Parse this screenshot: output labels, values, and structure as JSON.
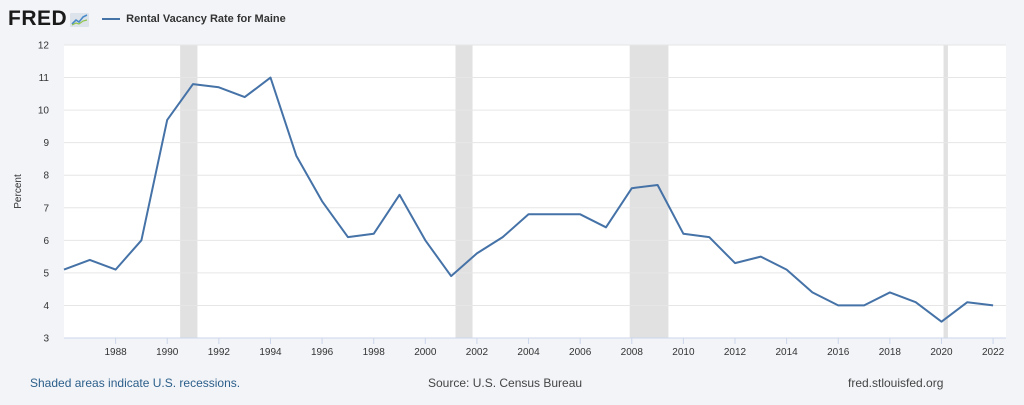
{
  "header": {
    "logo_text": "FRED",
    "logo_icon": "chart-line-icon",
    "legend_label": "Rental Vacancy Rate for Maine"
  },
  "footer": {
    "recession_note": "Shaded areas indicate U.S. recessions.",
    "source": "Source: U.S. Census Bureau",
    "site": "fred.stlouisfed.org"
  },
  "colors": {
    "series": "#4572a7",
    "recession": "#e1e1e1",
    "grid": "#e6e6e6",
    "plot_bg": "#ffffff"
  },
  "chart_data": {
    "type": "line",
    "title": "",
    "xlabel": "",
    "ylabel": "Percent",
    "xlim": [
      1986,
      2022.5
    ],
    "ylim": [
      3,
      12
    ],
    "y_ticks": [
      3,
      4,
      5,
      6,
      7,
      8,
      9,
      10,
      11,
      12
    ],
    "x_ticks": [
      1988,
      1990,
      1992,
      1994,
      1996,
      1998,
      2000,
      2002,
      2004,
      2006,
      2008,
      2010,
      2012,
      2014,
      2016,
      2018,
      2020,
      2022
    ],
    "grid": true,
    "legend_position": "top-left",
    "recessions": [
      {
        "start": 1990.5,
        "end": 1991.17
      },
      {
        "start": 2001.17,
        "end": 2001.83
      },
      {
        "start": 2007.92,
        "end": 2009.42
      },
      {
        "start": 2020.08,
        "end": 2020.25
      }
    ],
    "series": [
      {
        "name": "Rental Vacancy Rate for Maine",
        "x": [
          1986,
          1987,
          1988,
          1989,
          1990,
          1991,
          1992,
          1993,
          1994,
          1995,
          1996,
          1997,
          1998,
          1999,
          2000,
          2001,
          2002,
          2003,
          2004,
          2005,
          2006,
          2007,
          2008,
          2009,
          2010,
          2011,
          2012,
          2013,
          2014,
          2015,
          2016,
          2017,
          2018,
          2019,
          2020,
          2021,
          2022
        ],
        "values": [
          5.1,
          5.4,
          5.1,
          6.0,
          9.7,
          10.8,
          10.7,
          10.4,
          11.0,
          8.6,
          7.2,
          6.1,
          6.2,
          7.4,
          6.0,
          4.9,
          5.6,
          6.1,
          6.8,
          6.8,
          6.8,
          6.4,
          7.6,
          7.7,
          6.2,
          6.1,
          5.3,
          5.5,
          5.1,
          4.4,
          4.0,
          4.0,
          4.4,
          4.1,
          3.5,
          4.1,
          4.0
        ]
      }
    ]
  }
}
